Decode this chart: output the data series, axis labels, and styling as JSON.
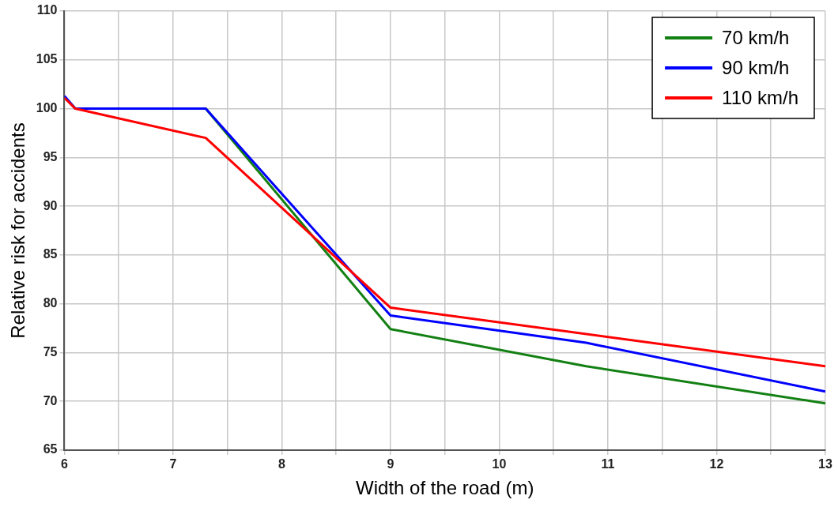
{
  "chart_data": {
    "type": "line",
    "xlabel": "Width of the road (m)",
    "ylabel": "Relative risk for accidents",
    "series": [
      {
        "name": "70 km/h",
        "color": "#138013",
        "x": [
          6,
          6.1,
          7.3,
          9,
          10.8,
          13
        ],
        "values": [
          101.2,
          100,
          100,
          77.4,
          73.6,
          69.8
        ]
      },
      {
        "name": "90 km/h",
        "color": "#0000ff",
        "x": [
          6,
          6.1,
          7.3,
          9,
          10.8,
          13
        ],
        "values": [
          101.3,
          100,
          100,
          78.8,
          76,
          71
        ]
      },
      {
        "name": "110 km/h",
        "color": "#ff0000",
        "x": [
          6,
          6.1,
          7.3,
          9,
          13
        ],
        "values": [
          101.1,
          100,
          97,
          79.6,
          73.6
        ]
      }
    ],
    "xlim": [
      6,
      13
    ],
    "xticks": [
      6,
      {
        "value": 6.5,
        "label": null
      },
      7,
      {
        "value": 7.5,
        "label": null
      },
      8,
      {
        "value": 8.5,
        "label": null
      },
      9,
      {
        "value": 9.5,
        "label": null
      },
      10,
      {
        "value": 10.5,
        "label": null
      },
      11,
      {
        "value": 11.5,
        "label": null
      },
      12,
      {
        "value": 12.5,
        "label": null
      },
      13
    ],
    "ylim": [
      65,
      110
    ],
    "yticks": [
      65,
      70,
      75,
      80,
      85,
      90,
      95,
      100,
      105,
      110
    ],
    "grid": true,
    "legend": "top right",
    "marker": "none",
    "line_style": "solid"
  }
}
